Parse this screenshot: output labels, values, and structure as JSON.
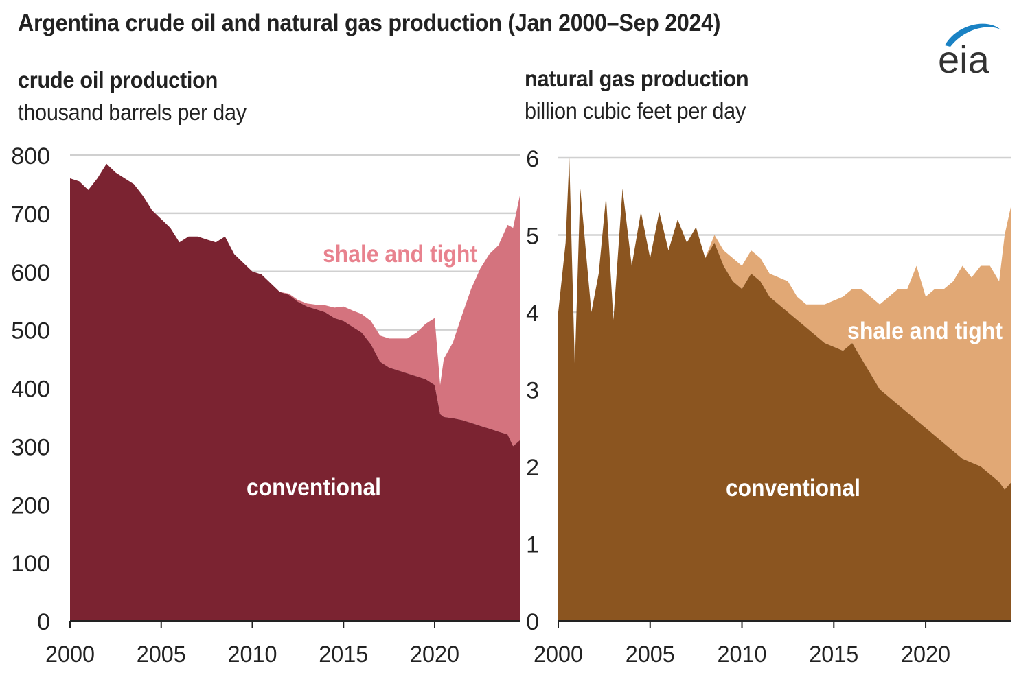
{
  "title": "Argentina crude oil and natural gas production (Jan 2000–Sep 2024)",
  "logo": {
    "text": "eia",
    "icon": "eia-logo"
  },
  "colors": {
    "oil_conventional": "#7b2331",
    "oil_shale": "#d4737e",
    "oil_label_shale": "#e8828e",
    "gas_conventional": "#8b5520",
    "gas_shale": "#e1a875",
    "gridline": "#d0d0d0",
    "logo_blue": "#1a82c4"
  },
  "chart_data": [
    {
      "type": "area",
      "stacked": true,
      "title": "crude oil production",
      "ylabel": "thousand barrels per day",
      "xlim": [
        2000,
        2024.67
      ],
      "ylim": [
        0,
        800
      ],
      "x_ticks": [
        2000,
        2005,
        2010,
        2015,
        2020
      ],
      "y_ticks": [
        0,
        100,
        200,
        300,
        400,
        500,
        600,
        700,
        800
      ],
      "grid": true,
      "x": [
        2000.0,
        2000.5,
        2001.0,
        2001.5,
        2002.0,
        2002.5,
        2003.0,
        2003.5,
        2004.0,
        2004.5,
        2005.0,
        2005.5,
        2006.0,
        2006.5,
        2007.0,
        2007.5,
        2008.0,
        2008.5,
        2009.0,
        2009.5,
        2010.0,
        2010.5,
        2011.0,
        2011.5,
        2012.0,
        2012.5,
        2013.0,
        2013.5,
        2014.0,
        2014.5,
        2015.0,
        2015.5,
        2016.0,
        2016.5,
        2017.0,
        2017.5,
        2018.0,
        2018.5,
        2019.0,
        2019.5,
        2020.0,
        2020.3,
        2020.5,
        2021.0,
        2021.5,
        2022.0,
        2022.5,
        2023.0,
        2023.5,
        2024.0,
        2024.3,
        2024.67
      ],
      "series": [
        {
          "name": "conventional",
          "values": [
            760,
            755,
            740,
            760,
            785,
            770,
            760,
            750,
            730,
            705,
            690,
            675,
            650,
            660,
            660,
            655,
            650,
            660,
            630,
            615,
            600,
            595,
            580,
            565,
            560,
            548,
            540,
            535,
            530,
            520,
            515,
            505,
            495,
            475,
            445,
            435,
            430,
            425,
            420,
            415,
            405,
            355,
            350,
            348,
            345,
            340,
            335,
            330,
            325,
            320,
            300,
            310
          ]
        },
        {
          "name": "shale and tight",
          "values": [
            0,
            0,
            0,
            0,
            0,
            0,
            0,
            0,
            0,
            0,
            0,
            0,
            0,
            0,
            0,
            0,
            0,
            0,
            0,
            0,
            0,
            0,
            0,
            0,
            2,
            3,
            5,
            8,
            12,
            18,
            25,
            28,
            32,
            40,
            45,
            50,
            55,
            60,
            75,
            95,
            115,
            50,
            100,
            130,
            180,
            230,
            270,
            300,
            320,
            360,
            375,
            420
          ]
        }
      ],
      "annotations": [
        "shale and tight",
        "conventional"
      ]
    },
    {
      "type": "area",
      "stacked": true,
      "title": "natural gas production",
      "ylabel": "billion cubic feet per day",
      "xlim": [
        2000,
        2024.67
      ],
      "ylim": [
        0,
        6
      ],
      "x_ticks": [
        2000,
        2005,
        2010,
        2015,
        2020
      ],
      "y_ticks": [
        0,
        1,
        2,
        3,
        4,
        5,
        6
      ],
      "grid": true,
      "x": [
        2000.0,
        2000.4,
        2000.6,
        2000.9,
        2001.2,
        2001.5,
        2001.8,
        2002.2,
        2002.6,
        2003.0,
        2003.5,
        2004.0,
        2004.5,
        2005.0,
        2005.5,
        2006.0,
        2006.5,
        2007.0,
        2007.5,
        2008.0,
        2008.5,
        2009.0,
        2009.5,
        2010.0,
        2010.5,
        2011.0,
        2011.5,
        2012.0,
        2012.5,
        2013.0,
        2013.5,
        2014.0,
        2014.5,
        2015.0,
        2015.5,
        2016.0,
        2016.5,
        2017.0,
        2017.5,
        2018.0,
        2018.5,
        2019.0,
        2019.5,
        2020.0,
        2020.5,
        2021.0,
        2021.5,
        2022.0,
        2022.5,
        2023.0,
        2023.5,
        2024.0,
        2024.3,
        2024.67
      ],
      "series": [
        {
          "name": "conventional",
          "values": [
            4.0,
            4.9,
            6.0,
            3.3,
            5.6,
            4.8,
            4.0,
            4.5,
            5.5,
            3.9,
            5.6,
            4.6,
            5.3,
            4.7,
            5.3,
            4.8,
            5.2,
            4.9,
            5.1,
            4.7,
            4.9,
            4.6,
            4.4,
            4.3,
            4.5,
            4.4,
            4.2,
            4.1,
            4.0,
            3.9,
            3.8,
            3.7,
            3.6,
            3.55,
            3.5,
            3.6,
            3.4,
            3.2,
            3.0,
            2.9,
            2.8,
            2.7,
            2.6,
            2.5,
            2.4,
            2.3,
            2.2,
            2.1,
            2.05,
            2.0,
            1.9,
            1.8,
            1.7,
            1.8
          ]
        },
        {
          "name": "shale and tight",
          "values": [
            0,
            0,
            0,
            0,
            0,
            0,
            0,
            0,
            0,
            0,
            0,
            0,
            0,
            0,
            0,
            0,
            0,
            0,
            0,
            0,
            0.1,
            0.2,
            0.3,
            0.3,
            0.3,
            0.3,
            0.3,
            0.35,
            0.4,
            0.3,
            0.3,
            0.4,
            0.5,
            0.6,
            0.7,
            0.7,
            0.9,
            1.0,
            1.1,
            1.3,
            1.5,
            1.6,
            2.0,
            1.7,
            1.9,
            2.0,
            2.2,
            2.5,
            2.4,
            2.6,
            2.7,
            2.6,
            3.3,
            3.6
          ]
        }
      ],
      "annotations": [
        "shale and tight",
        "conventional"
      ]
    }
  ]
}
